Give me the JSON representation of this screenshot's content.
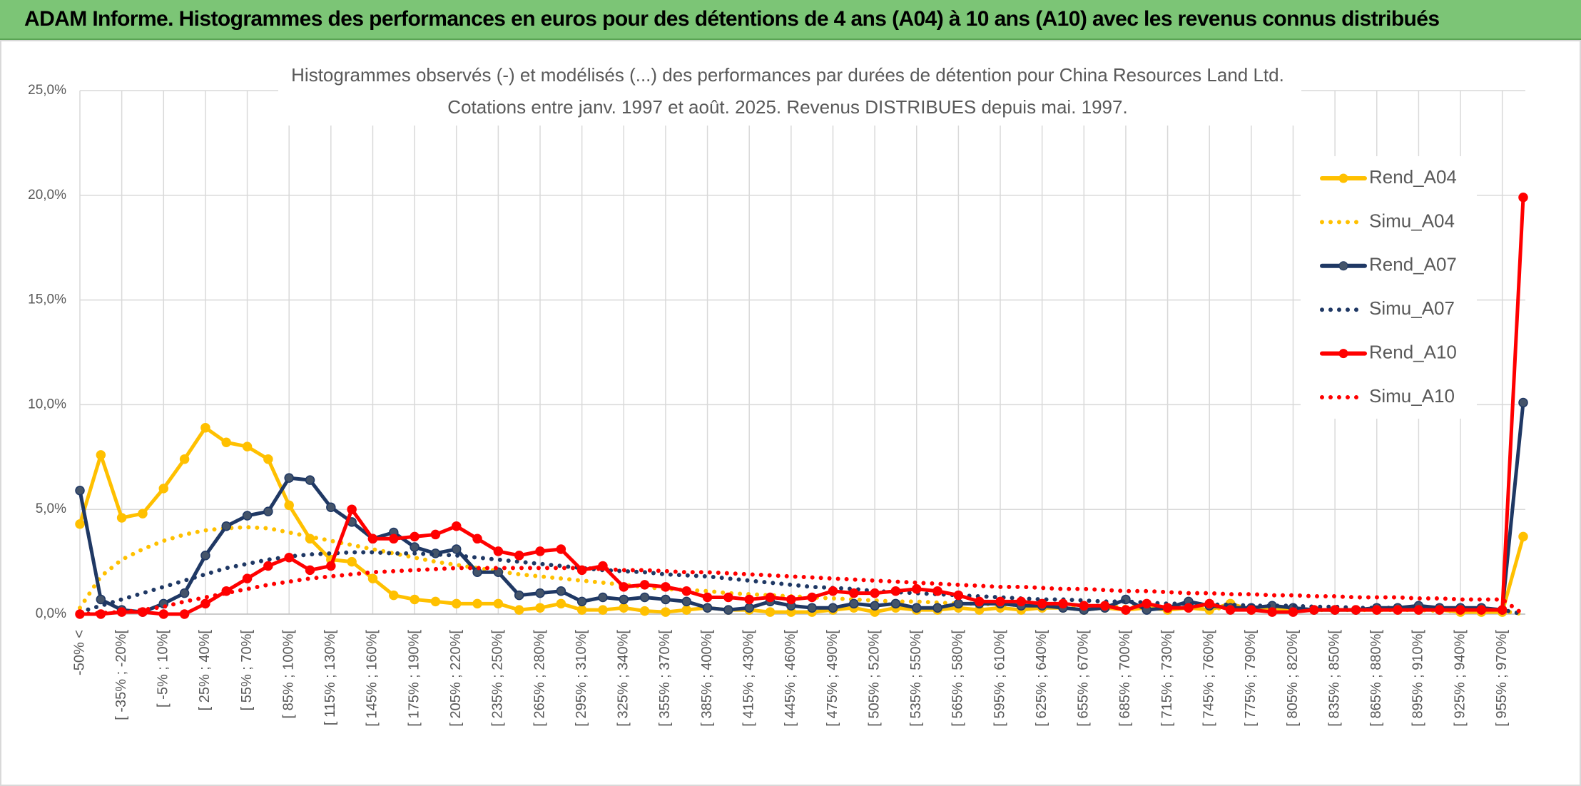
{
  "header": {
    "title": "ADAM Informe. Histogrammes des performances en euros pour des détentions de 4 ans (A04) à 10 ans (A10) avec les revenus connus distribués"
  },
  "chart_data": {
    "type": "line",
    "title": "Histogrammes observés (-) et modélisés (...) des performances par durées de détention pour China Resources Land Ltd.",
    "subtitle": "Cotations entre janv. 1997 et août. 2025. Revenus DISTRIBUES depuis mai. 1997.",
    "categories": [
      "-50% <",
      null,
      "[ -35% ; -20%[",
      null,
      "[ -5% ; 10%[",
      null,
      "[ 25% ; 40%[",
      null,
      "[ 55% ; 70%[",
      null,
      "[ 85% ; 100%[",
      null,
      "[ 115% ; 130%[",
      null,
      "[ 145% ; 160%[",
      null,
      "[ 175% ; 190%[",
      null,
      "[ 205% ; 220%[",
      null,
      "[ 235% ; 250%[",
      null,
      "[ 265% ; 280%[",
      null,
      "[ 295% ; 310%[",
      null,
      "[ 325% ; 340%[",
      null,
      "[ 355% ; 370%[",
      null,
      "[ 385% ; 400%[",
      null,
      "[ 415% ; 430%[",
      null,
      "[ 445% ; 460%[",
      null,
      "[ 475% ; 490%[",
      null,
      "[ 505% ; 520%[",
      null,
      "[ 535% ; 550%[",
      null,
      "[ 565% ; 580%[",
      null,
      "[ 595% ; 610%[",
      null,
      "[ 625% ; 640%[",
      null,
      "[ 655% ; 670%[",
      null,
      "[ 685% ; 700%[",
      null,
      "[ 715% ; 730%[",
      null,
      "[ 745% ; 760%[",
      null,
      "[ 775% ; 790%[",
      null,
      "[ 805% ; 820%[",
      null,
      "[ 835% ; 850%[",
      null,
      "[ 865% ; 880%[",
      null,
      "[ 895% ; 910%[",
      null,
      "[ 925% ; 940%[",
      null,
      "[ 955% ; 970%[",
      null
    ],
    "ylim": [
      0,
      25
    ],
    "yticks": [
      {
        "value": 0,
        "label": "0,0%"
      },
      {
        "value": 5,
        "label": "5,0%"
      },
      {
        "value": 10,
        "label": "10,0%"
      },
      {
        "value": 15,
        "label": "15,0%"
      },
      {
        "value": 20,
        "label": "20,0%"
      },
      {
        "value": 25,
        "label": "25,0%"
      }
    ],
    "grid": true,
    "legend": "right",
    "series": [
      {
        "name": "Rend_A04",
        "color": "#ffc000",
        "line_style": "solid",
        "markers": true,
        "values": [
          4.3,
          7.6,
          4.6,
          4.8,
          6.0,
          7.4,
          8.9,
          8.2,
          8.0,
          7.4,
          5.2,
          3.6,
          2.6,
          2.5,
          1.7,
          0.9,
          0.7,
          0.6,
          0.5,
          0.5,
          0.5,
          0.2,
          0.3,
          0.5,
          0.2,
          0.2,
          0.3,
          0.15,
          0.1,
          0.2,
          0.3,
          0.2,
          0.2,
          0.1,
          0.1,
          0.1,
          0.2,
          0.3,
          0.1,
          0.3,
          0.2,
          0.2,
          0.3,
          0.2,
          0.3,
          0.2,
          0.3,
          0.3,
          0.2,
          0.3,
          0.2,
          0.3,
          0.2,
          0.3,
          0.2,
          0.5,
          0.2,
          0.3,
          0.2,
          0.2,
          0.2,
          0.2,
          0.2,
          0.2,
          0.2,
          0.2,
          0.1,
          0.1,
          0.1,
          3.7
        ]
      },
      {
        "name": "Simu_A04",
        "color": "#ffc000",
        "line_style": "dotted",
        "markers": false,
        "values": [
          0.3,
          1.8,
          2.6,
          3.1,
          3.5,
          3.8,
          4.0,
          4.1,
          4.15,
          4.1,
          3.9,
          3.7,
          3.5,
          3.3,
          3.1,
          2.9,
          2.7,
          2.5,
          2.35,
          2.2,
          2.05,
          1.9,
          1.8,
          1.7,
          1.6,
          1.5,
          1.4,
          1.3,
          1.2,
          1.15,
          1.1,
          1.0,
          0.95,
          0.9,
          0.85,
          0.8,
          0.75,
          0.7,
          0.65,
          0.6,
          0.6,
          0.55,
          0.5,
          0.5,
          0.45,
          0.45,
          0.4,
          0.4,
          0.35,
          0.35,
          0.35,
          0.3,
          0.3,
          0.3,
          0.3,
          0.25,
          0.25,
          0.25,
          0.25,
          0.2,
          0.2,
          0.2,
          0.2,
          0.2,
          0.2,
          0.15,
          0.15,
          0.15,
          0.15,
          0.0
        ]
      },
      {
        "name": "Rend_A07",
        "color": "#1f3864",
        "line_style": "solid",
        "markers": true,
        "values": [
          5.9,
          0.7,
          0.2,
          0.1,
          0.5,
          1.0,
          2.8,
          4.2,
          4.7,
          4.9,
          6.5,
          6.4,
          5.1,
          4.4,
          3.6,
          3.9,
          3.2,
          2.9,
          3.1,
          2.0,
          2.0,
          0.9,
          1.0,
          1.1,
          0.6,
          0.8,
          0.7,
          0.8,
          0.7,
          0.6,
          0.3,
          0.2,
          0.3,
          0.6,
          0.4,
          0.3,
          0.3,
          0.5,
          0.4,
          0.5,
          0.3,
          0.3,
          0.5,
          0.5,
          0.5,
          0.4,
          0.4,
          0.3,
          0.2,
          0.3,
          0.7,
          0.2,
          0.3,
          0.6,
          0.4,
          0.3,
          0.3,
          0.4,
          0.3,
          0.2,
          0.2,
          0.2,
          0.3,
          0.3,
          0.4,
          0.3,
          0.3,
          0.3,
          0.2,
          10.1
        ]
      },
      {
        "name": "Simu_A07",
        "color": "#1f3864",
        "line_style": "dotted",
        "markers": false,
        "values": [
          0.1,
          0.4,
          0.7,
          1.0,
          1.3,
          1.6,
          1.9,
          2.2,
          2.4,
          2.6,
          2.75,
          2.85,
          2.9,
          2.95,
          2.95,
          2.9,
          2.9,
          2.85,
          2.8,
          2.7,
          2.6,
          2.5,
          2.4,
          2.3,
          2.2,
          2.1,
          2.05,
          2.0,
          1.9,
          1.85,
          1.8,
          1.7,
          1.6,
          1.5,
          1.4,
          1.3,
          1.25,
          1.2,
          1.1,
          1.05,
          1.0,
          0.95,
          0.9,
          0.85,
          0.8,
          0.75,
          0.7,
          0.7,
          0.65,
          0.6,
          0.6,
          0.55,
          0.5,
          0.5,
          0.45,
          0.45,
          0.4,
          0.4,
          0.4,
          0.35,
          0.35,
          0.3,
          0.3,
          0.3,
          0.3,
          0.25,
          0.25,
          0.25,
          0.2,
          0.0
        ]
      },
      {
        "name": "Rend_A10",
        "color": "#ff0000",
        "line_style": "solid",
        "markers": true,
        "values": [
          0,
          0,
          0.1,
          0.1,
          0,
          0,
          0.5,
          1.1,
          1.7,
          2.3,
          2.7,
          2.1,
          2.3,
          5.0,
          3.6,
          3.6,
          3.7,
          3.8,
          4.2,
          3.6,
          3.0,
          2.8,
          3.0,
          3.1,
          2.1,
          2.3,
          1.3,
          1.4,
          1.3,
          1.1,
          0.8,
          0.8,
          0.7,
          0.8,
          0.7,
          0.8,
          1.1,
          1.0,
          1.0,
          1.1,
          1.2,
          1.1,
          0.9,
          0.6,
          0.6,
          0.6,
          0.5,
          0.5,
          0.4,
          0.4,
          0.2,
          0.5,
          0.3,
          0.3,
          0.5,
          0.2,
          0.2,
          0.1,
          0.1,
          0.2,
          0.2,
          0.2,
          0.2,
          0.2,
          0.2,
          0.2,
          0.2,
          0.2,
          0.2,
          19.9
        ]
      },
      {
        "name": "Simu_A10",
        "color": "#ff0000",
        "line_style": "dotted",
        "markers": false,
        "values": [
          0.0,
          0.05,
          0.1,
          0.2,
          0.35,
          0.6,
          0.8,
          1.0,
          1.2,
          1.4,
          1.55,
          1.7,
          1.8,
          1.9,
          2.0,
          2.05,
          2.1,
          2.15,
          2.2,
          2.2,
          2.2,
          2.2,
          2.2,
          2.2,
          2.2,
          2.15,
          2.1,
          2.1,
          2.05,
          2.0,
          2.0,
          1.95,
          1.9,
          1.85,
          1.8,
          1.75,
          1.7,
          1.65,
          1.6,
          1.55,
          1.5,
          1.45,
          1.4,
          1.35,
          1.3,
          1.3,
          1.25,
          1.2,
          1.2,
          1.15,
          1.1,
          1.1,
          1.05,
          1.0,
          1.0,
          0.95,
          0.95,
          0.9,
          0.9,
          0.85,
          0.85,
          0.8,
          0.8,
          0.8,
          0.75,
          0.75,
          0.7,
          0.7,
          0.7,
          0.0
        ]
      }
    ]
  }
}
